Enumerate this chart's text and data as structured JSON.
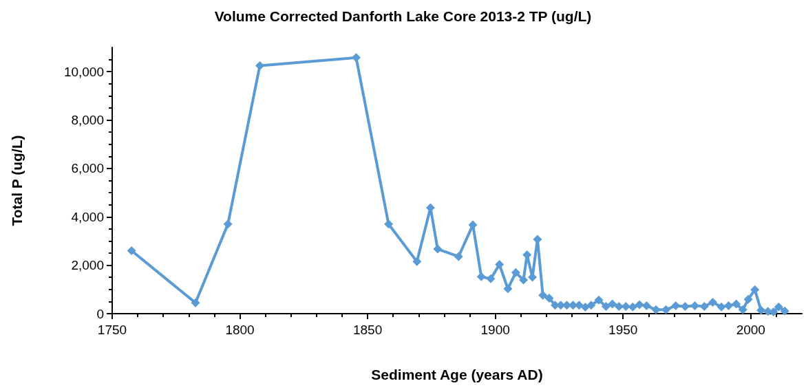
{
  "chart_data": {
    "type": "line",
    "title": "Volume Corrected Danforth Lake Core 2013-2 TP (ug/L)",
    "xlabel": "Sediment Age (years AD)",
    "ylabel": "Total P (ug/L)",
    "x": [
      1757.6,
      1782.6,
      1795.3,
      1807.8,
      1845.5,
      1858.2,
      1869.3,
      1874.6,
      1877.4,
      1885.6,
      1891.2,
      1894.5,
      1898.2,
      1901.6,
      1904.9,
      1908,
      1911,
      1912.4,
      1914.5,
      1916.5,
      1918.6,
      1921.1,
      1923.4,
      1925.6,
      1928,
      1930.4,
      1932.8,
      1935.2,
      1937.5,
      1940.5,
      1943.3,
      1945.8,
      1948.4,
      1951.1,
      1953.8,
      1956.4,
      1959.2,
      1962.9,
      1966.8,
      1970.6,
      1974.3,
      1978.1,
      1981.8,
      1985.1,
      1988.5,
      1991.3,
      1994.3,
      1996.9,
      1999,
      2001.6,
      2004,
      2006.7,
      2008.9,
      2010.9,
      2013.3
    ],
    "series": [
      {
        "color": "#5b9bd5",
        "values": [
          2600,
          450,
          3700,
          10250,
          10580,
          3700,
          2150,
          4380,
          2670,
          2360,
          3670,
          1530,
          1440,
          2030,
          1030,
          1700,
          1390,
          2430,
          1510,
          3070,
          760,
          640,
          350,
          350,
          350,
          350,
          350,
          270,
          350,
          560,
          300,
          400,
          300,
          300,
          280,
          370,
          330,
          160,
          160,
          330,
          300,
          330,
          300,
          470,
          280,
          330,
          400,
          160,
          590,
          990,
          140,
          90,
          70,
          280,
          110
        ]
      }
    ],
    "xlim": [
      1750,
      2020
    ],
    "xticks": [
      1750,
      1800,
      1850,
      1900,
      1950,
      2000
    ],
    "ylim": [
      0,
      11000
    ],
    "yticks": [
      {
        "value": 0,
        "label": "0"
      },
      {
        "value": 2000,
        "label": "2,000"
      },
      {
        "value": 4000,
        "label": "4,000"
      },
      {
        "value": 6000,
        "label": "6,000"
      },
      {
        "value": 8000,
        "label": "8,000"
      },
      {
        "value": 10000,
        "label": "10,000"
      }
    ],
    "marker": "diamond",
    "line_style": "solid"
  }
}
